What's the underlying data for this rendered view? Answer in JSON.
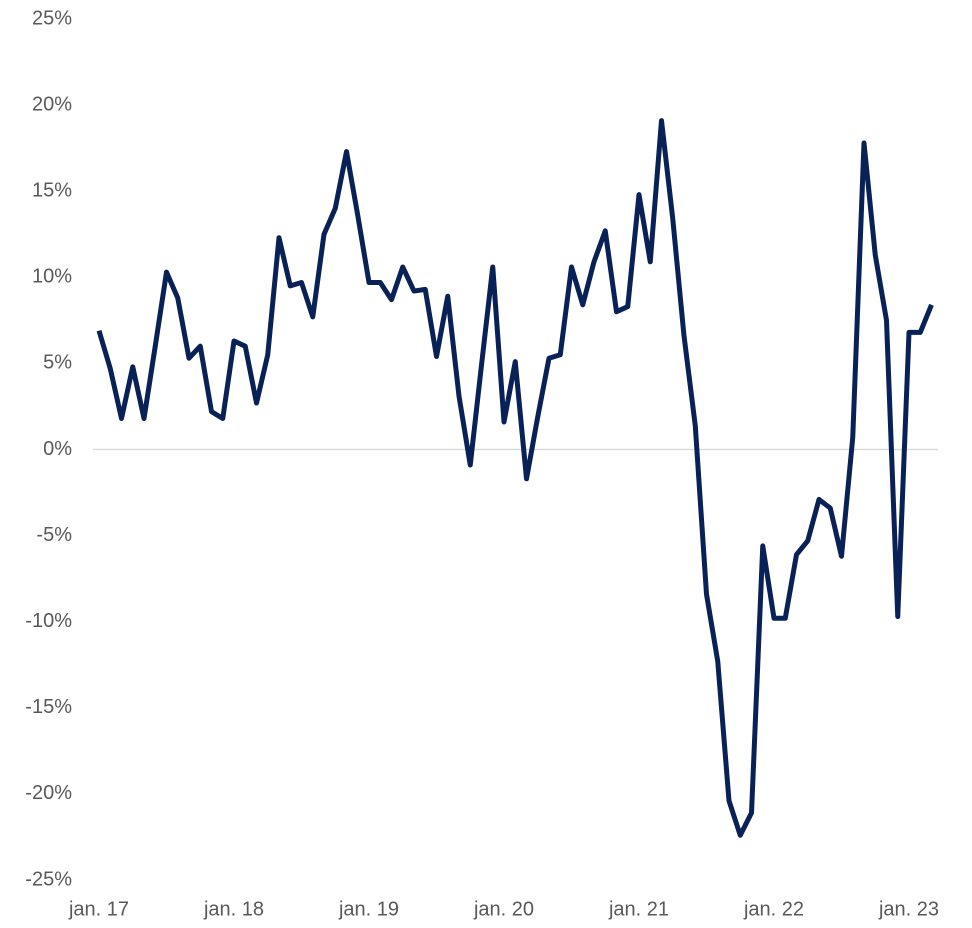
{
  "chart_data": {
    "type": "line",
    "categories": [
      "jan. 17",
      null,
      null,
      null,
      null,
      null,
      null,
      null,
      null,
      null,
      null,
      null,
      "jan. 18",
      null,
      null,
      null,
      null,
      null,
      null,
      null,
      null,
      null,
      null,
      null,
      "jan. 19",
      null,
      null,
      null,
      null,
      null,
      null,
      null,
      null,
      null,
      null,
      null,
      "jan. 20",
      null,
      null,
      null,
      null,
      null,
      null,
      null,
      null,
      null,
      null,
      null,
      "jan. 21",
      null,
      null,
      null,
      null,
      null,
      null,
      null,
      null,
      null,
      null,
      null,
      "jan. 22",
      null,
      null,
      null,
      null,
      null,
      null,
      null,
      null,
      null,
      null,
      null,
      "jan. 23",
      null,
      null
    ],
    "series": [
      {
        "color": "#0a2157",
        "values": [
          6.9,
          4.7,
          1.8,
          4.8,
          1.8,
          6.0,
          10.3,
          8.8,
          5.3,
          6.0,
          2.2,
          1.8,
          6.3,
          6.0,
          2.7,
          5.5,
          12.3,
          9.5,
          9.7,
          7.7,
          12.5,
          14.0,
          17.3,
          13.6,
          9.7,
          9.7,
          8.7,
          10.6,
          9.2,
          9.3,
          5.4,
          8.9,
          3.1,
          -0.9,
          4.9,
          10.6,
          1.6,
          5.1,
          -1.7,
          1.9,
          5.3,
          5.5,
          10.6,
          8.4,
          10.9,
          12.7,
          8.0,
          8.3,
          14.8,
          10.9,
          19.1,
          13.4,
          6.6,
          1.4,
          -8.4,
          -12.3,
          -20.4,
          -22.4,
          -21.1,
          -5.6,
          -9.8,
          -9.8,
          -6.1,
          -5.3,
          -2.9,
          -3.4,
          -6.2,
          0.7,
          17.8,
          11.3,
          7.5,
          -9.7,
          6.8,
          6.8,
          8.4
        ]
      }
    ],
    "ylim": [
      -25,
      25
    ],
    "yticks": [
      {
        "value": -25,
        "label": "-25%"
      },
      {
        "value": -20,
        "label": "-20%"
      },
      {
        "value": -15,
        "label": "-15%"
      },
      {
        "value": -10,
        "label": "-10%"
      },
      {
        "value": -5,
        "label": "-5%"
      },
      {
        "value": 0,
        "label": "0%"
      },
      {
        "value": 5,
        "label": "5%"
      },
      {
        "value": 10,
        "label": "10%"
      },
      {
        "value": 15,
        "label": "15%"
      },
      {
        "value": 20,
        "label": "20%"
      },
      {
        "value": 25,
        "label": "25%"
      }
    ],
    "zero_line": true
  }
}
